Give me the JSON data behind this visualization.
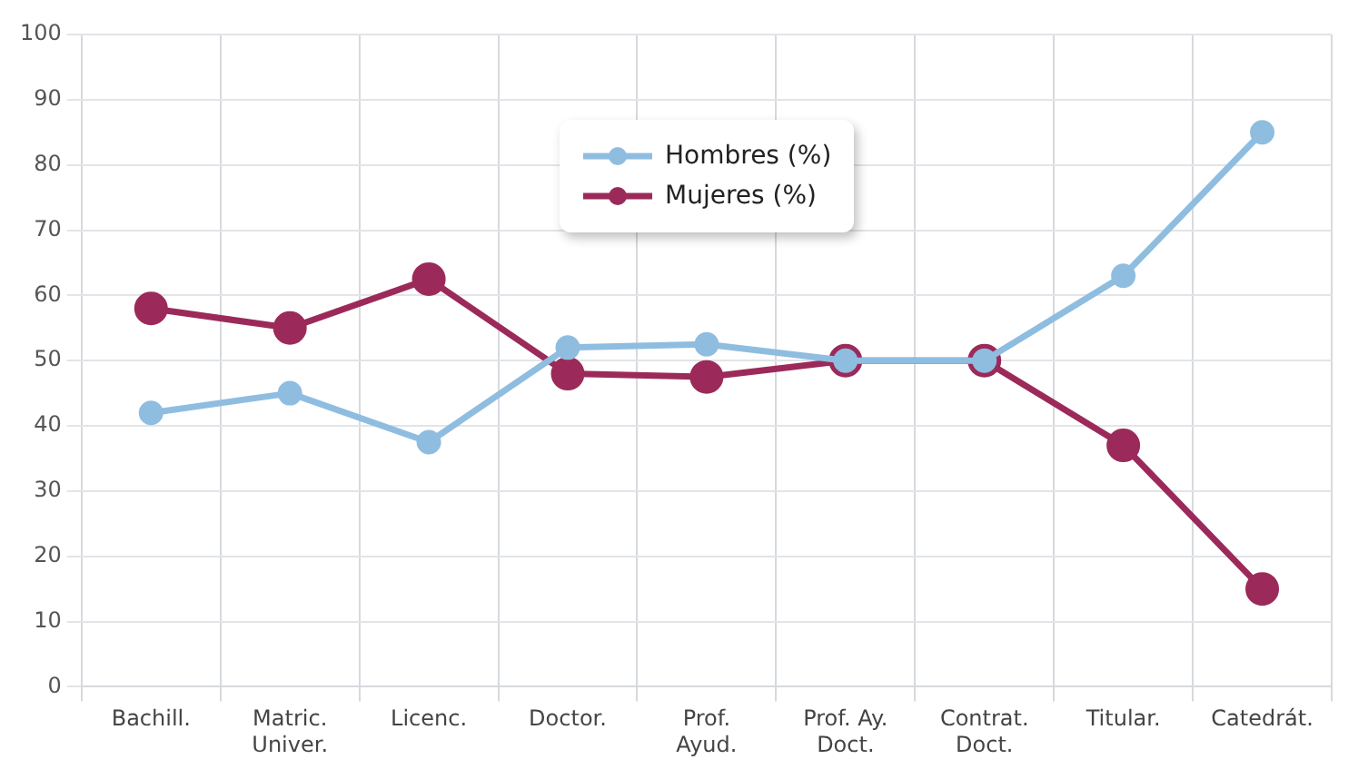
{
  "chart_data": {
    "type": "line",
    "categories": [
      "Bachill.",
      "Matric.\nUniver.",
      "Licenc.",
      "Doctor.",
      "Prof.\nAyud.",
      "Prof. Ay.\nDoct.",
      "Contrat.\nDoct.",
      "Titular.",
      "Catedrát."
    ],
    "series": [
      {
        "name": "Hombres (%)",
        "color": "#8fbde0",
        "values": [
          42,
          45,
          37.5,
          52,
          52.5,
          50,
          50,
          63,
          85
        ]
      },
      {
        "name": "Mujeres (%)",
        "color": "#9b2a5a",
        "values": [
          58,
          55,
          62.5,
          48,
          47.5,
          50,
          50,
          37,
          15
        ]
      }
    ],
    "ylim": [
      0,
      100
    ],
    "yticks": [
      0,
      10,
      20,
      30,
      40,
      50,
      60,
      70,
      80,
      90,
      100
    ],
    "grid": true,
    "legend": "top",
    "marker": "circle",
    "line_style": "solid"
  }
}
